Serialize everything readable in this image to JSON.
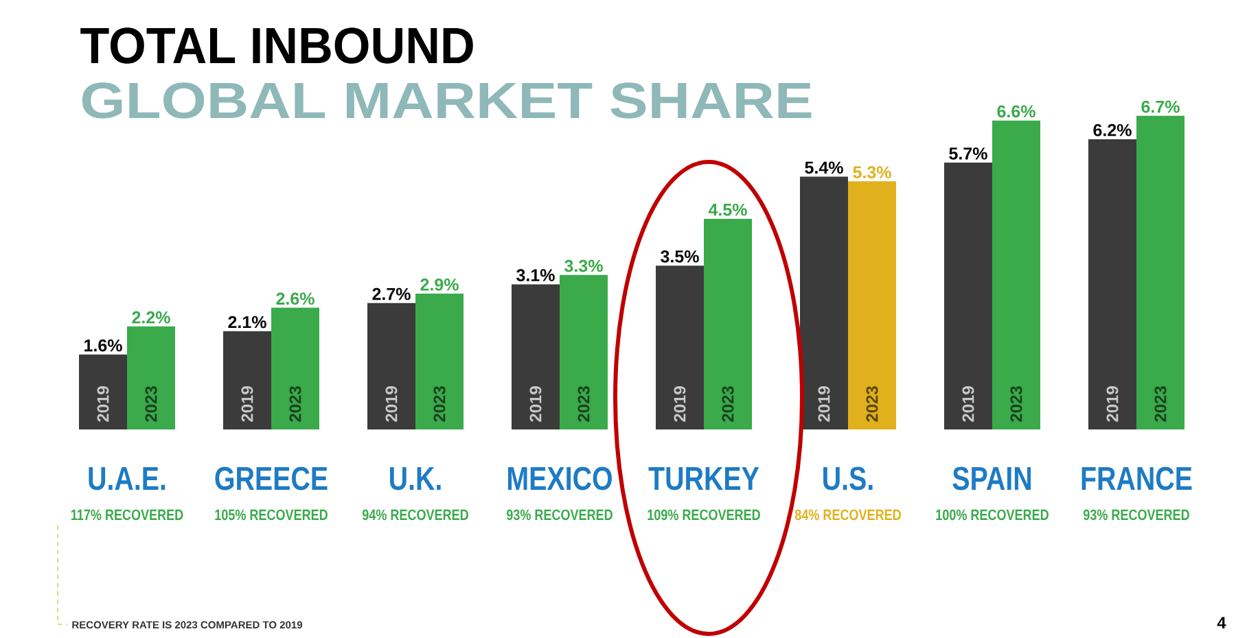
{
  "chart_data": {
    "type": "bar",
    "title": "TOTAL INBOUND",
    "subtitle": "GLOBAL MARKET SHARE",
    "categories": [
      "U.A.E.",
      "GREECE",
      "U.K.",
      "MEXICO",
      "TURKEY",
      "U.S.",
      "SPAIN",
      "FRANCE"
    ],
    "series": [
      {
        "name": "2019",
        "color": "#3b3b3b",
        "values": [
          1.6,
          2.1,
          2.7,
          3.1,
          3.5,
          5.4,
          5.7,
          6.2
        ],
        "value_labels": [
          "1.6%",
          "2.1%",
          "2.7%",
          "3.1%",
          "3.5%",
          "5.4%",
          "5.7%",
          "6.2%"
        ]
      },
      {
        "name": "2023",
        "colors": [
          "#3aaa4b",
          "#3aaa4b",
          "#3aaa4b",
          "#3aaa4b",
          "#3aaa4b",
          "#e0b11c",
          "#3aaa4b",
          "#3aaa4b"
        ],
        "values": [
          2.2,
          2.6,
          2.9,
          3.3,
          4.5,
          5.3,
          6.6,
          6.7
        ],
        "value_labels": [
          "2.2%",
          "2.6%",
          "2.9%",
          "3.3%",
          "4.5%",
          "5.3%",
          "6.6%",
          "6.7%"
        ]
      }
    ],
    "annotations": [
      "117% RECOVERED",
      "105% RECOVERED",
      "94% RECOVERED",
      "93% RECOVERED",
      "109% RECOVERED",
      "84% RECOVERED",
      "100% RECOVERED",
      "93% RECOVERED",
      "RECOVERY RATE IS 2023 COMPARED TO 2019",
      "4"
    ]
  }
}
